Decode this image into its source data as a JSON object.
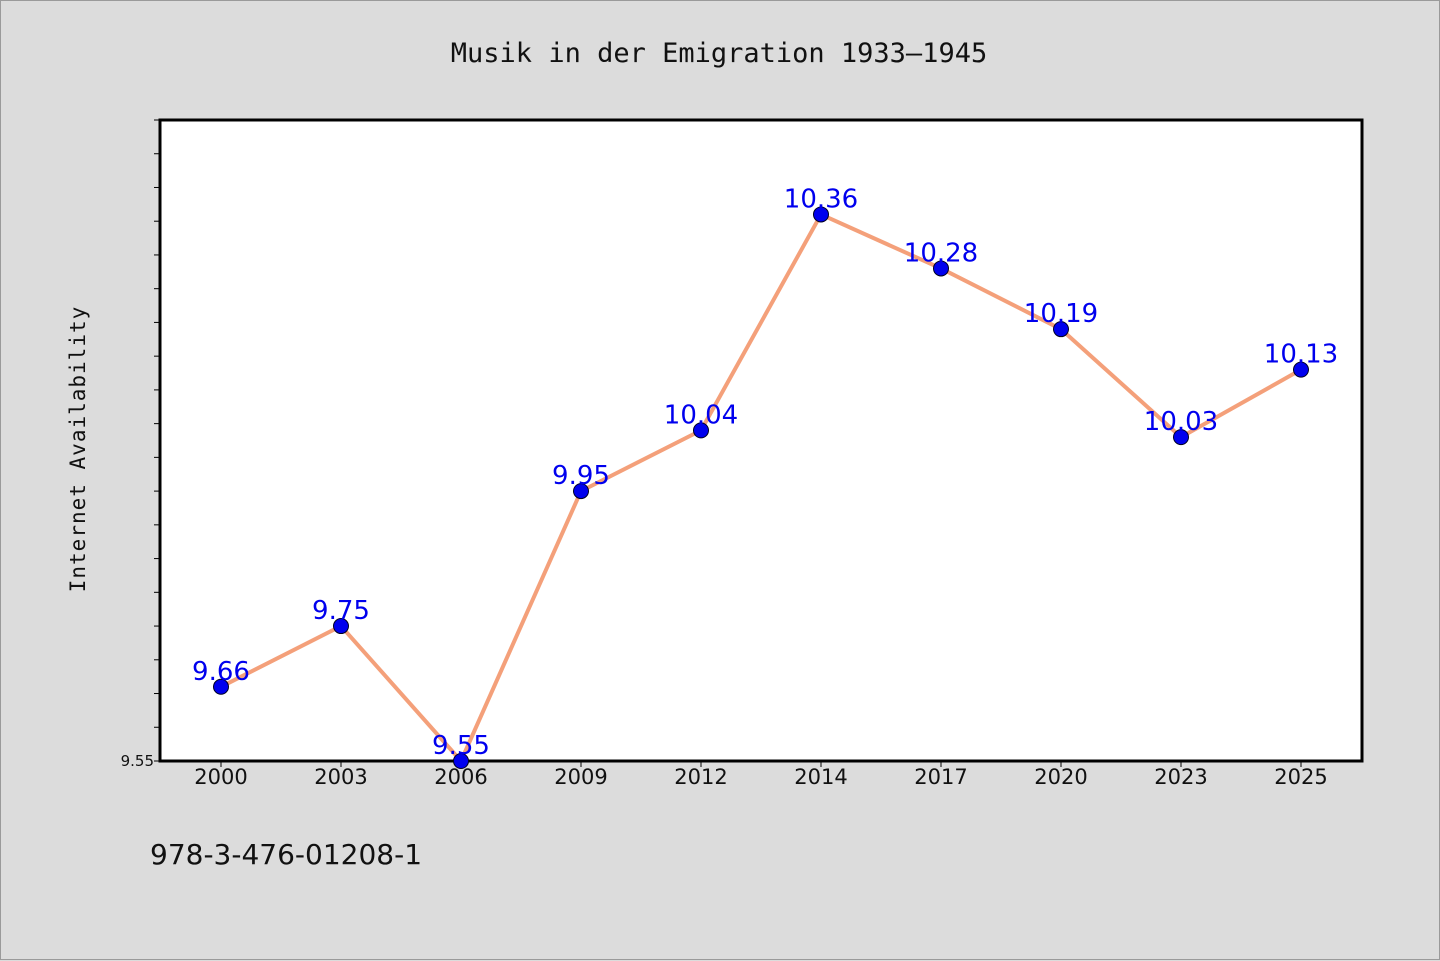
{
  "chart_data": {
    "type": "line",
    "title": "Musik in der Emigration 1933–1945",
    "xlabel": "",
    "ylabel": "Internet Availability",
    "categories": [
      "2000",
      "2003",
      "2006",
      "2009",
      "2012",
      "2014",
      "2017",
      "2020",
      "2023",
      "2025"
    ],
    "series": [
      {
        "values": [
          9.66,
          9.75,
          9.55,
          9.95,
          10.04,
          10.36,
          10.28,
          10.19,
          10.03,
          10.13
        ],
        "data_labels": [
          "9.66",
          "9.75",
          "9.55",
          "9.95",
          "10.04",
          "10.36",
          "10.28",
          "10.19",
          "10.03",
          "10.13"
        ],
        "line_color": "#f4a07a",
        "marker_color": "#0000ee",
        "label_color": "#0000ee"
      }
    ],
    "ylim": [
      9.55,
      10.5
    ],
    "yticks_labeled": [
      "9.55"
    ],
    "grid": false,
    "legend": "none"
  },
  "footer": {
    "isbn": "978-3-476-01208-1"
  },
  "colors": {
    "background": "#dcdcdc",
    "plot_background": "#ffffff",
    "axes": "#000000"
  }
}
